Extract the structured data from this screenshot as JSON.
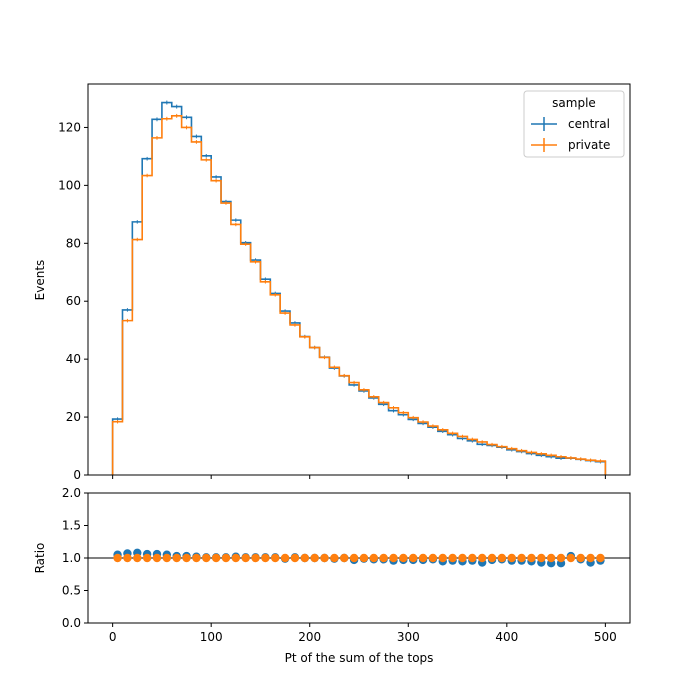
{
  "chart_data": [
    {
      "type": "line",
      "drawstyle": "step-histogram",
      "ylabel": "Events",
      "xlim": [
        -25,
        525
      ],
      "ylim": [
        0,
        135
      ],
      "x_ticks": [
        0,
        100,
        200,
        300,
        400,
        500
      ],
      "y_ticks": [
        0,
        20,
        40,
        60,
        80,
        100,
        120
      ],
      "bin_edges": [
        0,
        10,
        20,
        30,
        40,
        50,
        60,
        70,
        80,
        90,
        100,
        110,
        120,
        130,
        140,
        150,
        160,
        170,
        180,
        190,
        200,
        210,
        220,
        230,
        240,
        250,
        260,
        270,
        280,
        290,
        300,
        310,
        320,
        330,
        340,
        350,
        360,
        370,
        380,
        390,
        400,
        410,
        420,
        430,
        440,
        450,
        460,
        470,
        480,
        490,
        500
      ],
      "legend": {
        "title": "sample",
        "placement": "top-right"
      },
      "series": [
        {
          "name": "central",
          "color": "#1f77b4",
          "values": [
            19.3,
            57.0,
            87.4,
            109.2,
            122.8,
            128.6,
            127.2,
            123.5,
            116.9,
            110.2,
            102.9,
            94.4,
            88.0,
            80.2,
            74.2,
            67.6,
            62.7,
            56.6,
            52.5,
            47.8,
            44.0,
            40.7,
            36.9,
            34.2,
            31.1,
            29.0,
            26.6,
            24.4,
            22.2,
            20.8,
            19.2,
            17.8,
            16.5,
            15.1,
            13.9,
            12.6,
            11.8,
            10.6,
            10.2,
            9.6,
            8.7,
            8.1,
            7.4,
            6.8,
            6.3,
            5.8,
            5.8,
            5.4,
            5.0,
            4.6
          ]
        },
        {
          "name": "private",
          "color": "#ff7f0e",
          "values": [
            18.4,
            53.3,
            81.3,
            103.4,
            116.4,
            123.0,
            124.0,
            120.0,
            115.0,
            108.8,
            101.6,
            93.9,
            86.5,
            79.7,
            73.6,
            66.7,
            62.2,
            55.9,
            51.8,
            47.7,
            44.0,
            40.6,
            37.2,
            34.3,
            31.9,
            29.4,
            27.0,
            25.0,
            23.2,
            21.5,
            19.8,
            18.3,
            16.9,
            15.6,
            14.4,
            13.3,
            12.3,
            11.4,
            10.5,
            9.8,
            9.1,
            8.4,
            7.8,
            7.3,
            6.8,
            6.3,
            5.9,
            5.5,
            5.1,
            4.8
          ]
        }
      ]
    },
    {
      "type": "scatter",
      "xlabel": "Pt of the sum of the tops",
      "ylabel": "Ratio",
      "xlim": [
        -25,
        525
      ],
      "ylim": [
        0.0,
        2.0
      ],
      "x_ticks": [
        0,
        100,
        200,
        300,
        400,
        500
      ],
      "x_tick_labels": [
        "0",
        "100",
        "200",
        "300",
        "400",
        "500"
      ],
      "y_ticks": [
        0.0,
        0.5,
        1.0,
        1.5,
        2.0
      ],
      "y_tick_labels": [
        "0.0",
        "0.5",
        "1.0",
        "1.5",
        "2.0"
      ],
      "reference_line": 1.0,
      "x": [
        5,
        15,
        25,
        35,
        45,
        55,
        65,
        75,
        85,
        95,
        105,
        115,
        125,
        135,
        145,
        155,
        165,
        175,
        185,
        195,
        205,
        215,
        225,
        235,
        245,
        255,
        265,
        275,
        285,
        295,
        305,
        315,
        325,
        335,
        345,
        355,
        365,
        375,
        385,
        395,
        405,
        415,
        425,
        435,
        445,
        455,
        465,
        475,
        485,
        495
      ],
      "series": [
        {
          "name": "central",
          "color": "#1f77b4",
          "values": [
            1.05,
            1.07,
            1.08,
            1.06,
            1.06,
            1.05,
            1.03,
            1.03,
            1.02,
            1.01,
            1.01,
            1.01,
            1.02,
            1.01,
            1.01,
            1.01,
            1.01,
            0.99,
            1.01,
            1.0,
            1.0,
            1.0,
            0.99,
            1.0,
            0.97,
            0.99,
            0.98,
            0.98,
            0.96,
            0.97,
            0.97,
            0.97,
            0.98,
            0.95,
            0.96,
            0.95,
            0.96,
            0.93,
            0.97,
            0.98,
            0.96,
            0.96,
            0.95,
            0.93,
            0.92,
            0.92,
            1.03,
            0.98,
            0.93,
            0.96
          ]
        },
        {
          "name": "private",
          "color": "#ff7f0e",
          "values": [
            1,
            1,
            1,
            1,
            1,
            1,
            1,
            1,
            1,
            1,
            1,
            1,
            1,
            1,
            1,
            1,
            1,
            1,
            1,
            1,
            1,
            1,
            1,
            1,
            1,
            1,
            1,
            1,
            1,
            1,
            1,
            1,
            1,
            1,
            1,
            1,
            1,
            1,
            1,
            1,
            1,
            1,
            1,
            1,
            1,
            1,
            1,
            1,
            1,
            1
          ]
        }
      ]
    }
  ]
}
